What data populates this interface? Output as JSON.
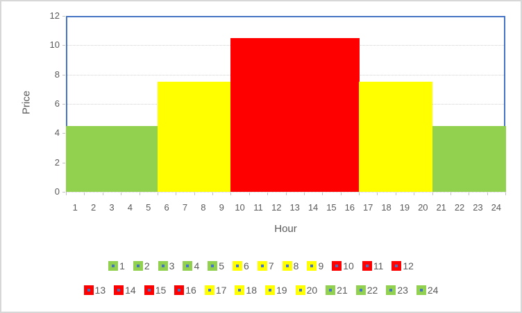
{
  "window": {
    "background": "#ffffff",
    "border_color": "#d7d7d7"
  },
  "chart_data": {
    "type": "bar",
    "title": "",
    "xlabel": "Hour",
    "ylabel": "Price",
    "categories": [
      "1",
      "2",
      "3",
      "4",
      "5",
      "6",
      "7",
      "8",
      "9",
      "10",
      "11",
      "12",
      "13",
      "14",
      "15",
      "16",
      "17",
      "18",
      "19",
      "20",
      "21",
      "22",
      "23",
      "24"
    ],
    "values": [
      4.5,
      4.5,
      4.5,
      4.5,
      4.5,
      7.5,
      7.5,
      7.5,
      7.5,
      10.5,
      10.5,
      10.5,
      10.5,
      10.5,
      10.5,
      10.5,
      7.5,
      7.5,
      7.5,
      7.5,
      4.5,
      4.5,
      4.5,
      4.5
    ],
    "bar_colors": [
      "#92D050",
      "#92D050",
      "#92D050",
      "#92D050",
      "#92D050",
      "#FFFF00",
      "#FFFF00",
      "#FFFF00",
      "#FFFF00",
      "#FF0000",
      "#FF0000",
      "#FF0000",
      "#FF0000",
      "#FF0000",
      "#FF0000",
      "#FF0000",
      "#FFFF00",
      "#FFFF00",
      "#FFFF00",
      "#FFFF00",
      "#92D050",
      "#92D050",
      "#92D050",
      "#92D050"
    ],
    "ylim": [
      0,
      12
    ],
    "yticks": [
      0,
      2,
      4,
      6,
      8,
      10,
      12
    ],
    "grid": true,
    "gap_width": 0,
    "legend_position": "bottom",
    "legend_items_per_row": 12,
    "legend_marker_dot_color": "#4472C4",
    "plot_border_color": "#4472C4",
    "gridline_color": "#CFCFCF",
    "tick_color": "#BFBFBF",
    "text_color": "#595959"
  }
}
